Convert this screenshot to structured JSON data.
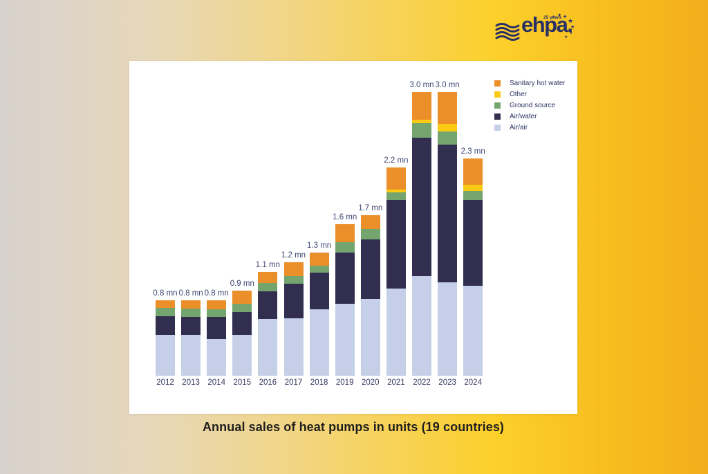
{
  "page": {
    "title": "Annual sales of heat pumps in units (19 countries)",
    "background_colors": [
      "#d8d2cc",
      "#fcd02b",
      "#f2ae1c"
    ]
  },
  "logo": {
    "brand": "ehpa.",
    "anniversary": "25 years",
    "color": "#293066",
    "icons": [
      "wave-lines-icon",
      "star-arc-icon"
    ]
  },
  "chart_data": {
    "type": "bar",
    "stacked": true,
    "title": "Annual sales of heat pumps in units (19 countries)",
    "unit": "mn (million units)",
    "grid": false,
    "legend_position": "top-right",
    "ylim": [
      0,
      3.3
    ],
    "categories": [
      "2012",
      "2013",
      "2014",
      "2015",
      "2016",
      "2017",
      "2018",
      "2019",
      "2020",
      "2021",
      "2022",
      "2023",
      "2024"
    ],
    "series": [
      {
        "name": "Air/air",
        "color": "#c5d0e8",
        "values": [
          0.43,
          0.43,
          0.39,
          0.43,
          0.6,
          0.61,
          0.7,
          0.76,
          0.81,
          0.92,
          1.05,
          0.99,
          0.95
        ]
      },
      {
        "name": "Air/water",
        "color": "#322e50",
        "values": [
          0.2,
          0.19,
          0.23,
          0.24,
          0.29,
          0.36,
          0.39,
          0.54,
          0.63,
          0.94,
          1.47,
          1.45,
          0.91
        ]
      },
      {
        "name": "Ground source",
        "color": "#74a56f",
        "values": [
          0.09,
          0.09,
          0.08,
          0.09,
          0.09,
          0.08,
          0.07,
          0.11,
          0.11,
          0.08,
          0.15,
          0.14,
          0.09
        ]
      },
      {
        "name": "Other",
        "color": "#fbca15",
        "values": [
          0,
          0,
          0,
          0,
          0,
          0,
          0,
          0,
          0,
          0.03,
          0.04,
          0.08,
          0.07
        ]
      },
      {
        "name": "Sanitary hot water",
        "color": "#eb8f2a",
        "values": [
          0.08,
          0.09,
          0.1,
          0.14,
          0.12,
          0.15,
          0.14,
          0.19,
          0.15,
          0.23,
          0.29,
          0.34,
          0.28
        ]
      }
    ],
    "totals": [
      0.8,
      0.8,
      0.8,
      0.9,
      1.1,
      1.2,
      1.3,
      1.6,
      1.7,
      2.2,
      3.0,
      3.0,
      2.3
    ],
    "total_labels": [
      "0.8 mn",
      "0.8 mn",
      "0.8 mn",
      "0.9 mn",
      "1.1 mn",
      "1.2 mn",
      "1.3 mn",
      "1.6 mn",
      "1.7 mn",
      "2.2 mn",
      "3.0 mn",
      "3.0 mn",
      "2.3 mn"
    ],
    "legend": [
      {
        "label": "Sanitary hot water",
        "color": "#eb8f2a"
      },
      {
        "label": "Other",
        "color": "#fbca15"
      },
      {
        "label": "Ground source",
        "color": "#74a56f"
      },
      {
        "label": "Air/water",
        "color": "#322e50"
      },
      {
        "label": "Air/air",
        "color": "#c5d0e8"
      }
    ]
  }
}
